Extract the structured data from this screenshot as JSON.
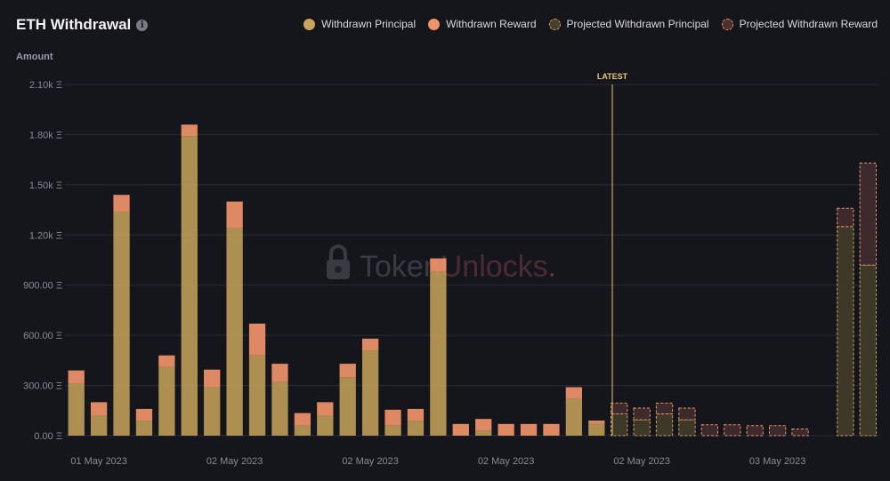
{
  "header": {
    "title": "ETH Withdrawal",
    "info_icon": "info-icon"
  },
  "legend": [
    {
      "label": "Withdrawn Principal",
      "color": "#c9a45c",
      "dashed": false
    },
    {
      "label": "Withdrawn Reward",
      "color": "#f0926a",
      "dashed": false
    },
    {
      "label": "Projected Withdrawn Principal",
      "color": "#4a3f2c",
      "dashed": true
    },
    {
      "label": "Projected Withdrawn Reward",
      "color": "#4a3030",
      "dashed": true
    }
  ],
  "watermark": {
    "text_a": "Token",
    "text_b": "Unlocks",
    "text_c": "."
  },
  "latest_label": "LATEST",
  "chart_data": {
    "type": "bar",
    "stacked": true,
    "ylabel": "Amount",
    "ylim": [
      0,
      2100
    ],
    "yticks": [
      "0.00 Ξ",
      "300.00 Ξ",
      "600.00 Ξ",
      "900.00 Ξ",
      "1.20k Ξ",
      "1.50k Ξ",
      "1.80k Ξ",
      "2.10k Ξ"
    ],
    "ytick_values": [
      0,
      300,
      600,
      900,
      1200,
      1500,
      1800,
      2100
    ],
    "xtick_labels": [
      {
        "index": 1,
        "label": "01 May 2023"
      },
      {
        "index": 7,
        "label": "02 May 2023"
      },
      {
        "index": 13,
        "label": "02 May 2023"
      },
      {
        "index": 19,
        "label": "02 May 2023"
      },
      {
        "index": 25,
        "label": "02 May 2023"
      },
      {
        "index": 31,
        "label": "03 May 2023"
      }
    ],
    "latest_after_index": 23.5,
    "grid": true,
    "series": [
      {
        "name": "Withdrawn Principal",
        "color": "#c9a45c",
        "values": [
          310,
          120,
          1340,
          90,
          410,
          1790,
          290,
          1240,
          480,
          320,
          60,
          120,
          350,
          510,
          60,
          90,
          980,
          0,
          30,
          0,
          0,
          0,
          220,
          70,
          0,
          0,
          0,
          0,
          0,
          0,
          0,
          0,
          0,
          0,
          0,
          0
        ]
      },
      {
        "name": "Withdrawn Reward",
        "color": "#f0926a",
        "values": [
          80,
          80,
          100,
          70,
          70,
          70,
          105,
          160,
          190,
          110,
          75,
          80,
          80,
          70,
          95,
          70,
          80,
          70,
          70,
          70,
          70,
          70,
          70,
          20,
          0,
          0,
          0,
          0,
          0,
          0,
          0,
          0,
          0,
          0,
          0,
          0
        ]
      },
      {
        "name": "Projected Withdrawn Principal",
        "color": "#c9a45c",
        "projected": true,
        "values": [
          0,
          0,
          0,
          0,
          0,
          0,
          0,
          0,
          0,
          0,
          0,
          0,
          0,
          0,
          0,
          0,
          0,
          0,
          0,
          0,
          0,
          0,
          0,
          0,
          130,
          95,
          130,
          95,
          0,
          0,
          0,
          0,
          0,
          0,
          1250,
          1020
        ]
      },
      {
        "name": "Projected Withdrawn Reward",
        "color": "#f0926a",
        "projected": true,
        "values": [
          0,
          0,
          0,
          0,
          0,
          0,
          0,
          0,
          0,
          0,
          0,
          0,
          0,
          0,
          0,
          0,
          0,
          0,
          0,
          0,
          0,
          0,
          0,
          0,
          65,
          70,
          65,
          70,
          65,
          65,
          60,
          60,
          40,
          0,
          110,
          610
        ]
      }
    ]
  }
}
